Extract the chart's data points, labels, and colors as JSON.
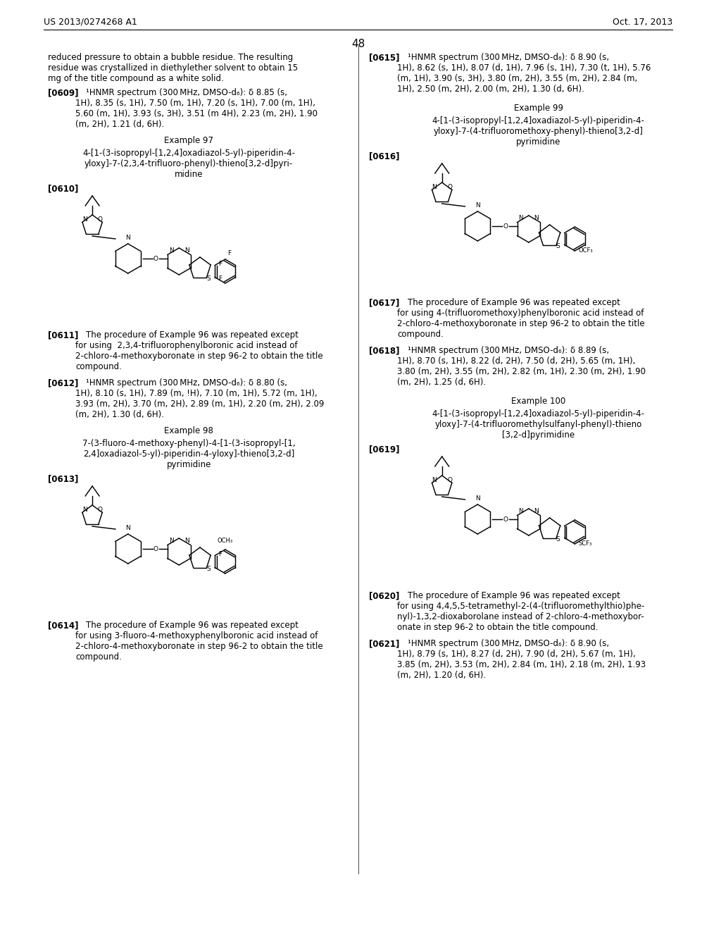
{
  "patent_number": "US 2013/0274268 A1",
  "patent_date": "Oct. 17, 2013",
  "page_number": "48",
  "background_color": "#ffffff",
  "text_color": "#000000",
  "fs_body": 8.5,
  "fs_header": 9.0,
  "fs_page": 11
}
